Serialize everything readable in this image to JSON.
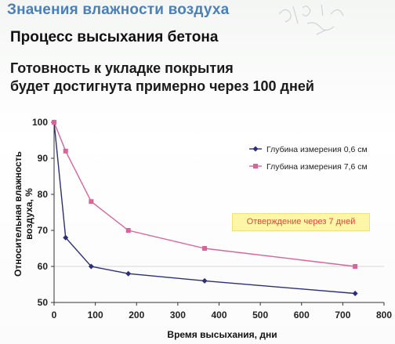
{
  "header": {
    "title": "Значения влажности воздуха"
  },
  "subtitle": "Процесс высыхания бетона",
  "statement": {
    "line1": "Готовность к укладке покрытия",
    "line2": "будет достигнута примерно через 100 дней"
  },
  "colors": {
    "header": "#4a7fb8",
    "series_1": "#2b2f7a",
    "series_2": "#d9649a",
    "annotation_text": "#e0483c",
    "annotation_bg": "#fdf6a6"
  },
  "chart_data": {
    "type": "line",
    "title": "",
    "xlabel": "Время высыхания, дни",
    "ylabel": "Относительная влажность воздуха, %",
    "xlim": [
      0,
      800
    ],
    "ylim": [
      50,
      100
    ],
    "x_ticks": [
      0,
      100,
      200,
      300,
      400,
      500,
      600,
      700,
      800
    ],
    "y_ticks": [
      50,
      60,
      70,
      80,
      90,
      100
    ],
    "grid": "horizontal line at 60",
    "legend_position": "top-right",
    "annotation": "Отверждение через 7 дней",
    "series": [
      {
        "name": "Глубина измерения 0,6 см",
        "marker": "diamond",
        "points": [
          [
            0,
            100
          ],
          [
            28,
            68
          ],
          [
            90,
            60
          ],
          [
            180,
            58
          ],
          [
            365,
            56
          ],
          [
            730,
            52.5
          ]
        ]
      },
      {
        "name": "Глубина измерения 7,6 см",
        "marker": "square",
        "points": [
          [
            0,
            100
          ],
          [
            28,
            92
          ],
          [
            90,
            78
          ],
          [
            180,
            70
          ],
          [
            365,
            65
          ],
          [
            730,
            60
          ]
        ]
      }
    ]
  }
}
